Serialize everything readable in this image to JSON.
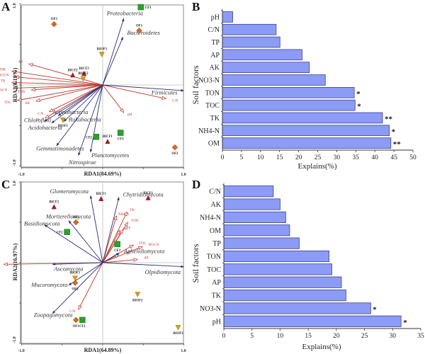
{
  "chart_data": [
    {
      "panel": "A",
      "type": "scatter",
      "subtype": "RDA biplot",
      "xlabel": "RDA1(84.69%)",
      "ylabel": "RDA2(8.19%)",
      "xlim": [
        -1.0,
        1.0
      ],
      "ylim": [
        -1.0,
        1.0
      ],
      "x_tick_labels": [
        "-1.0",
        "1.0"
      ],
      "y_tick_labels": [
        "-1.0",
        "1.0"
      ],
      "species_arrows": [
        {
          "name": "Proteobacteria",
          "x": 0.26,
          "y": 0.82,
          "lx": 0.05,
          "ly": 0.86
        },
        {
          "name": "Bacteroidetes",
          "x": 0.25,
          "y": 0.59,
          "lx": 0.3,
          "ly": 0.62
        },
        {
          "name": "Firmicutes",
          "x": 1.0,
          "y": -0.07,
          "lx": 0.6,
          "ly": -0.12
        },
        {
          "name": "Actinobacteria",
          "x": -0.55,
          "y": -0.38,
          "lx": -0.62,
          "ly": -0.36
        },
        {
          "name": "Chloroflexi",
          "x": -0.72,
          "y": -0.45,
          "lx": -0.97,
          "ly": -0.46
        },
        {
          "name": "Rokubacteria",
          "x": -0.48,
          "y": -0.45,
          "lx": -0.42,
          "ly": -0.45
        },
        {
          "name": "Acidobacteria",
          "x": -0.63,
          "y": -0.47,
          "lx": -0.92,
          "ly": -0.55
        },
        {
          "name": "Gemmatimonadetes",
          "x": -0.57,
          "y": -0.75,
          "lx": -0.82,
          "ly": -0.81
        },
        {
          "name": "Nitrospirae",
          "x": -0.3,
          "y": -0.87,
          "lx": -0.42,
          "ly": -0.98
        },
        {
          "name": "Planctomycetes",
          "x": -0.15,
          "y": -0.83,
          "lx": -0.14,
          "ly": -0.89
        }
      ],
      "env_arrows": [
        {
          "name": "AP",
          "x": -0.91,
          "y": 0.26
        },
        {
          "name": "OM",
          "x": -1.12,
          "y": 0.17
        },
        {
          "name": "NO3-N",
          "x": -1.08,
          "y": 0.1
        },
        {
          "name": "TK",
          "x": -1.12,
          "y": 0.03
        },
        {
          "name": "NH4-N",
          "x": -1.1,
          "y": -0.04
        },
        {
          "name": "TON",
          "x": -0.88,
          "y": -0.06
        },
        {
          "name": "TOC",
          "x": -1.05,
          "y": -0.19
        },
        {
          "name": "AK",
          "x": -0.82,
          "y": -0.2
        },
        {
          "name": "TP",
          "x": -0.71,
          "y": -0.41
        },
        {
          "name": "C/N",
          "x": -0.66,
          "y": -0.33
        },
        {
          "name": "pH",
          "x": 0.26,
          "y": -0.34
        },
        {
          "name": "C/N",
          "x": 0.78,
          "y": -0.17
        }
      ],
      "sites": [
        {
          "name": "CF1",
          "group": "CF",
          "x": 0.47,
          "y": 0.96
        },
        {
          "name": "CF2",
          "group": "CF",
          "x": -0.08,
          "y": -0.64
        },
        {
          "name": "CF3",
          "group": "CF",
          "x": 0.22,
          "y": -0.59
        },
        {
          "name": "OF1",
          "group": "OF",
          "x": 0.45,
          "y": 0.67
        },
        {
          "name": "OF2",
          "group": "OF",
          "x": 0.89,
          "y": -0.77
        },
        {
          "name": "OF3",
          "group": "OF",
          "x": -0.6,
          "y": 0.75
        },
        {
          "name": "BICF1",
          "group": "BICF",
          "x": 0.06,
          "y": -0.7
        },
        {
          "name": "BICF2",
          "group": "BICF",
          "x": -0.37,
          "y": 0.12
        },
        {
          "name": "BICF3",
          "group": "BICF",
          "x": -0.23,
          "y": 0.14
        },
        {
          "name": "BIOF1",
          "group": "BIOF",
          "x": -0.49,
          "y": -0.43
        },
        {
          "name": "BIOF2",
          "group": "BIOF",
          "x": -0.24,
          "y": 0.08
        },
        {
          "name": "BIOF3",
          "group": "BIOF",
          "x": -0.01,
          "y": 0.38
        }
      ]
    },
    {
      "panel": "B",
      "type": "bar",
      "orientation": "horizontal",
      "categories": [
        "pH",
        "C/N",
        "TP",
        "AP",
        "AK",
        "NO3-N",
        "TON",
        "TOC",
        "TK",
        "NH4-N",
        "OM"
      ],
      "values": [
        2.7,
        14.1,
        15.1,
        20.9,
        22.8,
        27.0,
        34.6,
        34.8,
        42.0,
        43.8,
        44.2
      ],
      "significance": [
        "",
        "",
        "",
        "",
        "",
        "",
        "*",
        "*",
        "**",
        "*",
        "**"
      ],
      "xlabel": "Explains(%)",
      "ylabel": "Soil factors",
      "xlim": [
        0,
        50
      ],
      "x_ticks": [
        0,
        5,
        10,
        15,
        20,
        25,
        30,
        35,
        40,
        45,
        50
      ],
      "bar_color": "#8c9cf6",
      "bar_edge": "#3b3f8f"
    },
    {
      "panel": "C",
      "type": "scatter",
      "subtype": "RDA biplot",
      "xlabel": "RDA1(64.89%)",
      "ylabel": "RDA2(16.97%)",
      "xlim": [
        -1.0,
        1.0
      ],
      "ylim": [
        -1.0,
        1.0
      ],
      "x_tick_labels": [
        "-1.0",
        "1.0"
      ],
      "y_tick_labels": [
        "-1.0",
        "1.0"
      ],
      "species_arrows": [
        {
          "name": "Glomeromycota",
          "x": -0.15,
          "y": 0.83,
          "lx": -0.65,
          "ly": 0.86
        },
        {
          "name": "Chytridiomycota",
          "x": 0.2,
          "y": 0.81,
          "lx": 0.25,
          "ly": 0.82
        },
        {
          "name": "Mortierellomycota",
          "x": -0.42,
          "y": 0.52,
          "lx": -0.7,
          "ly": 0.55
        },
        {
          "name": "Basidiomycota",
          "x": -0.72,
          "y": 0.47,
          "lx": -0.97,
          "ly": 0.46
        },
        {
          "name": "Aphelidiomycota",
          "x": 0.2,
          "y": 0.12,
          "lx": 0.26,
          "ly": 0.12
        },
        {
          "name": "Olpidiomycota",
          "x": 1.0,
          "y": -0.05,
          "lx": 0.52,
          "ly": -0.14
        },
        {
          "name": "Ascomycota",
          "x": -0.62,
          "y": -0.02,
          "lx": -0.6,
          "ly": -0.1
        },
        {
          "name": "Mucoromycota",
          "x": -0.42,
          "y": -0.28,
          "lx": -0.88,
          "ly": -0.3
        },
        {
          "name": "Zoopagomycota",
          "x": -0.62,
          "y": -0.63,
          "lx": -0.85,
          "ly": -0.67
        }
      ],
      "env_arrows": [
        {
          "name": "pH",
          "x": -1.22,
          "y": -0.02
        },
        {
          "name": "C/N",
          "x": -0.3,
          "y": -0.58
        },
        {
          "name": "NH4-N",
          "x": 0.17,
          "y": 0.58
        },
        {
          "name": "TK",
          "x": 0.3,
          "y": 0.63
        },
        {
          "name": "TON",
          "x": 0.31,
          "y": 0.5
        },
        {
          "name": "AK",
          "x": 0.21,
          "y": 0.4
        },
        {
          "name": "TP",
          "x": 0.25,
          "y": 0.41
        },
        {
          "name": "TOC",
          "x": 0.38,
          "y": 0.22
        },
        {
          "name": "NO3-N",
          "x": 0.49,
          "y": 0.2
        },
        {
          "name": "OM",
          "x": 0.2,
          "y": 0.1
        },
        {
          "name": "AP",
          "x": 0.43,
          "y": 0.04
        }
      ],
      "sites": [
        {
          "name": "CF1",
          "group": "CF",
          "x": -0.25,
          "y": -0.71
        },
        {
          "name": "CF2",
          "group": "CF",
          "x": -0.44,
          "y": 0.38
        },
        {
          "name": "CF3",
          "group": "CF",
          "x": 0.18,
          "y": 0.23
        },
        {
          "name": "OF1",
          "group": "OF",
          "x": -0.33,
          "y": -0.71
        },
        {
          "name": "OF2",
          "group": "OF",
          "x": -0.34,
          "y": -0.25
        },
        {
          "name": "OF3",
          "group": "OF",
          "x": -0.33,
          "y": 0.5
        },
        {
          "name": "BICF1",
          "group": "BICF",
          "x": 0.56,
          "y": 0.8
        },
        {
          "name": "BICF2",
          "group": "BICF",
          "x": -0.6,
          "y": 0.69
        },
        {
          "name": "BICF3",
          "group": "BICF",
          "x": -0.02,
          "y": 0.79
        },
        {
          "name": "BIOF1",
          "group": "BIOF",
          "x": -0.34,
          "y": -0.19
        },
        {
          "name": "BIOF2",
          "group": "BIOF",
          "x": 0.43,
          "y": -0.39
        },
        {
          "name": "BIOF3",
          "group": "BIOF",
          "x": 0.93,
          "y": -0.8
        }
      ]
    },
    {
      "panel": "D",
      "type": "bar",
      "orientation": "horizontal",
      "categories": [
        "C/N",
        "AK",
        "NH4-N",
        "OM",
        "TP",
        "TON",
        "TOC",
        "AP",
        "TK",
        "NO3-N",
        "pH"
      ],
      "values": [
        8.8,
        10.0,
        11.0,
        11.7,
        13.4,
        18.7,
        19.2,
        20.9,
        21.7,
        26.1,
        31.5
      ],
      "significance": [
        "",
        "",
        "",
        "",
        "",
        "",
        "",
        "",
        "",
        "*",
        "*"
      ],
      "xlabel": "Explains(%)",
      "ylabel": "Soil factors",
      "xlim": [
        0,
        35
      ],
      "x_ticks": [
        0,
        5,
        10,
        15,
        20,
        25,
        30,
        35
      ],
      "bar_color": "#8c9cf6",
      "bar_edge": "#3b3f8f"
    }
  ],
  "panel_letters": [
    "A",
    "B",
    "C",
    "D"
  ],
  "colors": {
    "species_arrow": "#2b2f7a",
    "env_arrow": "#c0392b",
    "CF": "#2ca02c",
    "OF": "#d2691e",
    "BICF": "#a01c24",
    "BIOF": "#d4a017",
    "frame": "#888888",
    "zero_line": "#bbbbbb"
  }
}
